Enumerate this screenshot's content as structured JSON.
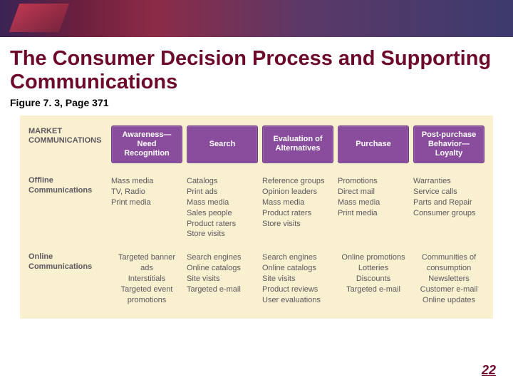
{
  "title": "The Consumer Decision Process and Supporting Communications",
  "subtitle": "Figure 7. 3, Page 371",
  "pageNumber": "22",
  "figure": {
    "background": "#f8f0cf",
    "headerBg": "#8a4d9e",
    "headerText": "#ffffff",
    "bodyText": "#5e5760",
    "rowLabels": [
      "MARKET COMMUNICATIONS",
      "Offline Communications",
      "Online Communications"
    ],
    "columns": [
      "Awareness—Need Recognition",
      "Search",
      "Evaluation of Alternatives",
      "Purchase",
      "Post-purchase Behavior—Loyalty"
    ],
    "offline": [
      "Mass media\nTV, Radio\nPrint media",
      "Catalogs\nPrint ads\nMass media\nSales people\nProduct raters\nStore visits",
      "Reference groups\nOpinion leaders\nMass media\nProduct raters\nStore visits",
      "Promotions\nDirect mail\nMass media\nPrint media",
      "Warranties\nService calls\nParts and Repair\nConsumer groups"
    ],
    "online": [
      "Targeted banner ads\nInterstitials\nTargeted event promotions",
      "Search engines\nOnline catalogs\nSite visits\nTargeted e-mail",
      "Search engines\nOnline catalogs\nSite visits\nProduct reviews\nUser evaluations",
      "Online promotions\nLotteries\nDiscounts\nTargeted e-mail",
      "Communities of consumption\nNewsletters\nCustomer e-mail\nOnline updates"
    ]
  }
}
